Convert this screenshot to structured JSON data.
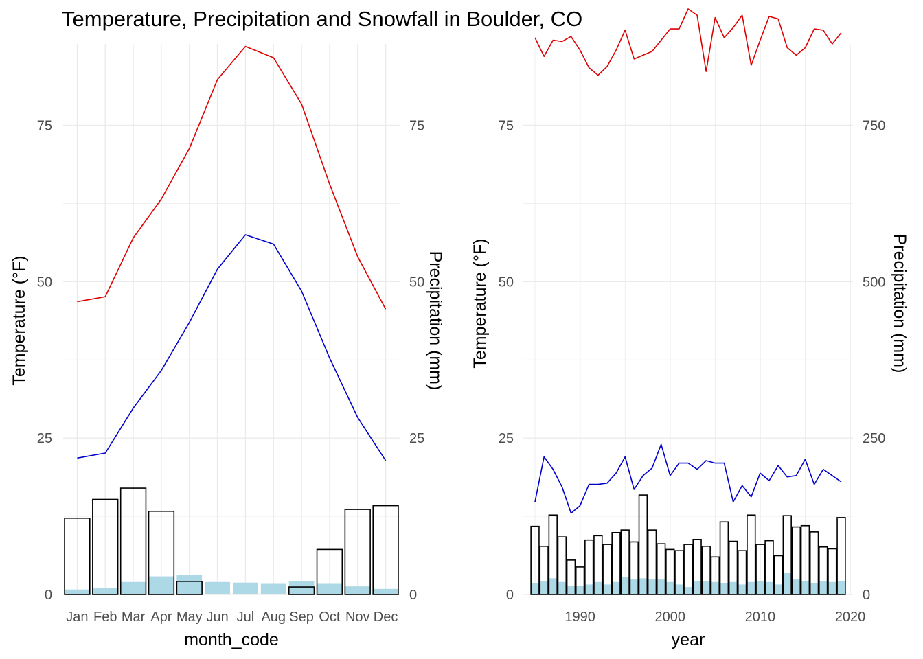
{
  "title": "Temperature, Precipitation and Snowfall in Boulder, CO",
  "colors": {
    "tmax": "#dd0000",
    "tmin": "#0000cc",
    "precip_fill": "#add8e6",
    "snow_outline": "#000000",
    "grid": "#ebebeb"
  },
  "chart_data": [
    {
      "type": "line",
      "xlabel": "month_code",
      "ylabel": "Temperature (°F)",
      "ylabel_right": "Precipitation (mm)",
      "categories": [
        "Jan",
        "Feb",
        "Mar",
        "Apr",
        "May",
        "Jun",
        "Jul",
        "Aug",
        "Sep",
        "Oct",
        "Nov",
        "Dec"
      ],
      "ylim": [
        0,
        88
      ],
      "yticks": [
        0,
        25,
        50,
        75
      ],
      "yticks_right": [
        0,
        25,
        50,
        75
      ],
      "series": [
        {
          "values": [
            46.8,
            47.6,
            57.0,
            63.2,
            71.3,
            82.3,
            87.6,
            85.8,
            78.4,
            65.6,
            54.0,
            45.6
          ]
        },
        {
          "values": [
            21.8,
            22.6,
            29.8,
            35.8,
            43.5,
            52.0,
            57.5,
            56.0,
            48.5,
            37.8,
            28.3,
            21.4
          ]
        }
      ],
      "bars_precip": [
        0.8,
        1.0,
        2.0,
        2.9,
        3.1,
        2.0,
        1.9,
        1.7,
        2.1,
        1.7,
        1.3,
        0.9
      ],
      "bars_snow": [
        12.2,
        15.2,
        17.0,
        13.3,
        2.1,
        0.0,
        0.0,
        0.0,
        1.2,
        7.2,
        13.6,
        14.2
      ]
    },
    {
      "type": "line",
      "xlabel": "year",
      "ylabel": "Temperature (°F)",
      "ylabel_right": "Precipitation (mm)",
      "x": [
        1985,
        1986,
        1987,
        1988,
        1989,
        1990,
        1991,
        1992,
        1993,
        1994,
        1995,
        1996,
        1997,
        1998,
        1999,
        2000,
        2001,
        2002,
        2003,
        2004,
        2005,
        2006,
        2007,
        2008,
        2009,
        2010,
        2011,
        2012,
        2013,
        2014,
        2015,
        2016,
        2017,
        2018,
        2019
      ],
      "xticks": [
        1990,
        2000,
        2010,
        2020
      ],
      "xlim": [
        1983.7,
        2020.3
      ],
      "ylim": [
        0,
        88
      ],
      "yticks": [
        0,
        25,
        50,
        75
      ],
      "yticks_right": [
        0,
        250,
        500,
        750
      ],
      "series": [
        {
          "values": [
            89.0,
            86.0,
            88.6,
            88.4,
            89.2,
            87.0,
            84.2,
            83.0,
            84.4,
            87.0,
            90.2,
            85.6,
            86.2,
            86.8,
            88.6,
            90.4,
            90.4,
            93.6,
            92.6,
            83.6,
            92.2,
            89.0,
            90.6,
            92.6,
            84.6,
            88.6,
            92.4,
            92.0,
            87.4,
            86.2,
            87.4,
            90.4,
            90.2,
            88.0,
            89.8
          ]
        },
        {
          "values": [
            14.8,
            22.0,
            20.0,
            17.2,
            13.0,
            14.2,
            17.6,
            17.6,
            17.8,
            19.4,
            22.0,
            16.8,
            19.0,
            20.2,
            24.0,
            19.0,
            21.0,
            21.0,
            20.0,
            21.4,
            21.0,
            21.0,
            14.8,
            17.4,
            15.6,
            19.4,
            18.2,
            20.6,
            18.8,
            19.0,
            21.6,
            17.6,
            20.0,
            19.0,
            18.0
          ]
        }
      ],
      "bars_precip": [
        1.8,
        2.2,
        2.6,
        2.0,
        1.4,
        1.4,
        1.6,
        2.0,
        1.6,
        2.0,
        2.8,
        2.4,
        2.6,
        2.4,
        2.4,
        2.0,
        1.6,
        1.2,
        2.2,
        2.2,
        2.0,
        1.8,
        2.0,
        1.6,
        2.0,
        2.2,
        2.0,
        1.6,
        3.4,
        2.4,
        2.2,
        1.8,
        2.2,
        2.0,
        2.2
      ],
      "bars_snow": [
        10.9,
        7.7,
        12.7,
        9.2,
        5.5,
        4.4,
        8.7,
        9.4,
        8.0,
        9.9,
        10.3,
        8.4,
        15.9,
        10.3,
        8.1,
        7.2,
        7.0,
        8.0,
        8.8,
        7.7,
        6.0,
        11.6,
        8.5,
        7.0,
        12.7,
        8.0,
        8.6,
        6.2,
        12.6,
        10.8,
        11.0,
        10.0,
        7.6,
        7.3,
        12.3
      ]
    }
  ]
}
